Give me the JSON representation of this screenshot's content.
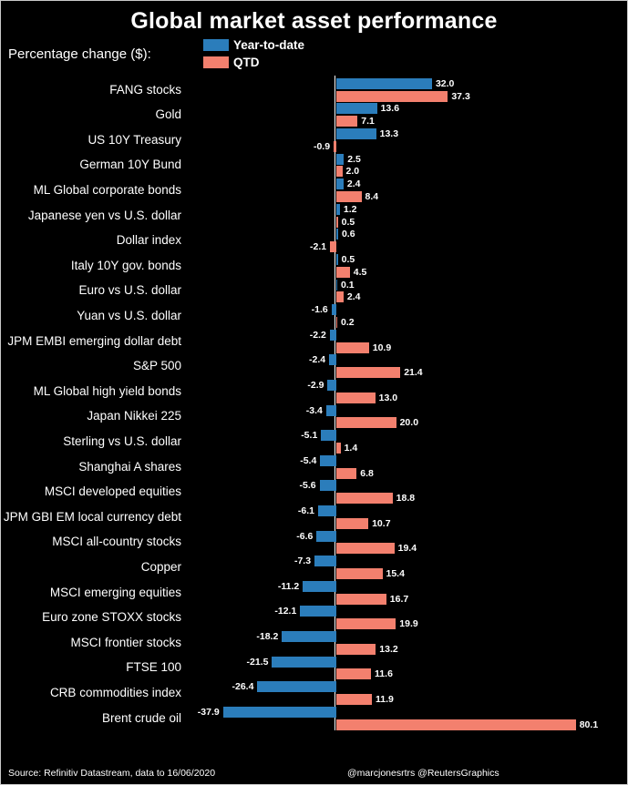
{
  "title": "Global market asset performance",
  "legend": {
    "label": "Percentage change ($):",
    "series": [
      {
        "name": "Year-to-date",
        "color": "#2b7dbb"
      },
      {
        "name": "QTD",
        "color": "#f3806e"
      }
    ]
  },
  "chart_data": {
    "type": "bar",
    "orientation": "horizontal",
    "title": "Global market asset performance",
    "xlabel": "Percentage change ($)",
    "ylabel": "",
    "xlim": [
      -48.5,
      98
    ],
    "zero_axis_line": true,
    "legend_position": "top-left",
    "categories": [
      "FANG stocks",
      "Gold",
      "US 10Y Treasury",
      "German 10Y Bund",
      "ML Global corporate bonds",
      "Japanese yen vs U.S. dollar",
      "Dollar index",
      "Italy 10Y gov. bonds",
      "Euro vs U.S. dollar",
      "Yuan vs U.S. dollar",
      "JPM EMBI emerging dollar debt",
      "S&P 500",
      "ML Global high yield bonds",
      "Japan Nikkei 225",
      "Sterling vs U.S. dollar",
      "Shanghai A shares",
      "MSCI developed equities",
      "JPM GBI EM local currency debt",
      "MSCI all-country stocks",
      "Copper",
      "MSCI emerging equities",
      "Euro zone STOXX stocks",
      "MSCI frontier stocks",
      "FTSE 100",
      "CRB commodities index",
      "Brent crude oil"
    ],
    "series": [
      {
        "name": "Year-to-date",
        "color": "#2b7dbb",
        "values": [
          32.0,
          13.6,
          13.3,
          2.5,
          2.4,
          1.2,
          0.6,
          0.5,
          0.1,
          -1.6,
          -2.2,
          -2.4,
          -2.9,
          -3.4,
          -5.1,
          -5.4,
          -5.6,
          -6.1,
          -6.6,
          -7.3,
          -11.2,
          -12.1,
          -18.2,
          -21.5,
          -26.4,
          -37.9
        ]
      },
      {
        "name": "QTD",
        "color": "#f3806e",
        "values": [
          37.3,
          7.1,
          -0.9,
          2.0,
          8.4,
          0.5,
          -2.1,
          4.5,
          2.4,
          0.2,
          10.9,
          21.4,
          13.0,
          20.0,
          1.4,
          6.8,
          18.8,
          10.7,
          19.4,
          15.4,
          16.7,
          19.9,
          13.2,
          11.6,
          11.9,
          80.1
        ]
      }
    ]
  },
  "footer": {
    "source": "Source: Refinitiv Datastream, data to 16/06/2020",
    "credit": "@marcjonesrtrs @ReutersGraphics"
  },
  "colors": {
    "background": "#000000",
    "text": "#ffffff",
    "ytd": "#2b7dbb",
    "qtd": "#f3806e",
    "axis": "#ffffff"
  }
}
